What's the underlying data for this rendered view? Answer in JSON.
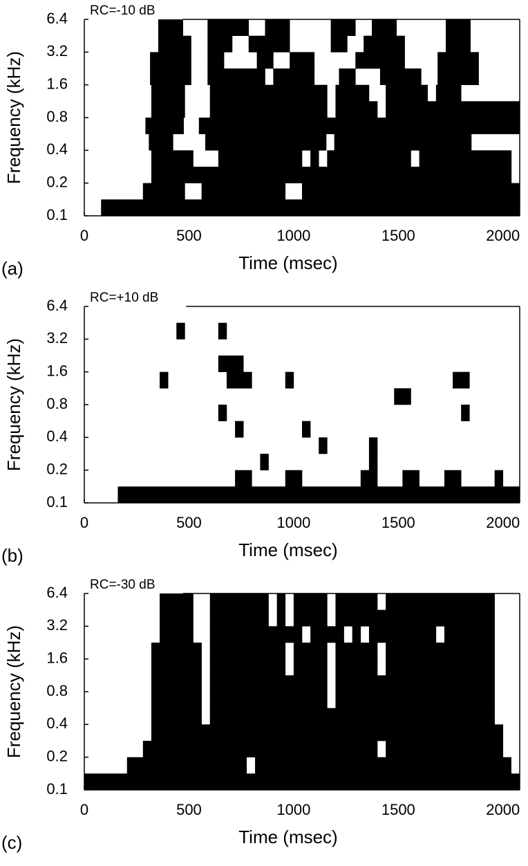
{
  "chart_data": [
    {
      "type": "heatmap",
      "panel_label": "(a)",
      "title": "RC=-10 dB",
      "xlabel": "Time (msec)",
      "ylabel": "Frequency (kHz)",
      "xlim": [
        0,
        2080
      ],
      "xticks": [
        0,
        500,
        1000,
        1500,
        2000
      ],
      "ylim": [
        0.1,
        6.4
      ],
      "yticks": [
        0.1,
        0.2,
        0.4,
        0.8,
        1.6,
        3.2,
        6.4
      ],
      "log_y": true,
      "color": "#000000",
      "mask": [
        ".........###...#####..###.....###..###......###......",
        ".........####..###..#####.....##..#####.....###......",
        "........#####..##....##..###.....######....#####.....",
        "........#####..#######.#####...##...#####..#####.....",
        "........####...##############.####..#####.###.......",
        "........####...##############.#####.################",
        "........#####..##########################################",
        "........###....###############.#################......",
        "........#####...##########.#.##########.###########.",
        "........###########################################.",
        ".......#####..##########..##########################",
        "..##################################################"
      ]
    },
    {
      "type": "heatmap",
      "panel_label": "(b)",
      "title": "RC=+10 dB",
      "xlabel": "Time (msec)",
      "ylabel": "Frequency (kHz)",
      "xlim": [
        0,
        2080
      ],
      "xticks": [
        0,
        500,
        1000,
        1500,
        2000
      ],
      "ylim": [
        0.1,
        6.4
      ],
      "yticks": [
        0.1,
        0.2,
        0.4,
        0.8,
        1.6,
        3.2,
        6.4
      ],
      "log_y": true,
      "color": "#000000",
      "mask": [
        "....................................................",
        "...........#....#...................................",
        "....................................................",
        "................###.................................",
        ".........#.......###....#...................##......",
        ".....................................##.............",
        "................#............................#......",
        "..................#.......#.........................",
        "............................#.....#.................",
        ".....................#............#.................",
        "..................##....##.......##...##...##....#..",
        "....################################################"
      ]
    },
    {
      "type": "heatmap",
      "panel_label": "(c)",
      "title": "RC=-30 dB",
      "xlabel": "Time (msec)",
      "ylabel": "Frequency (kHz)",
      "xlim": [
        0,
        2080
      ],
      "xticks": [
        0,
        500,
        1000,
        1500,
        2000
      ],
      "ylim": [
        0.1,
        6.4
      ],
      "yticks": [
        0.1,
        0.2,
        0.4,
        0.8,
        1.6,
        3.2,
        6.4
      ],
      "log_y": true,
      "color": "#000000",
      "mask": [
        ".........####..#######.#.####.#####.#############...",
        ".........####..#######.#.####.###################...",
        ".........####..###########.####.#.########.######...",
        "........######.#########.####.#####.#############...",
        "........######.#########.####.#####.#############...",
        "........######.##############.###################...",
        "........######.##############.###################...",
        "........######.##################################...",
        "........##########################################..",
        ".......############################.##############..",
        ".....##############.##############################.",
        "####################################################"
      ]
    }
  ]
}
